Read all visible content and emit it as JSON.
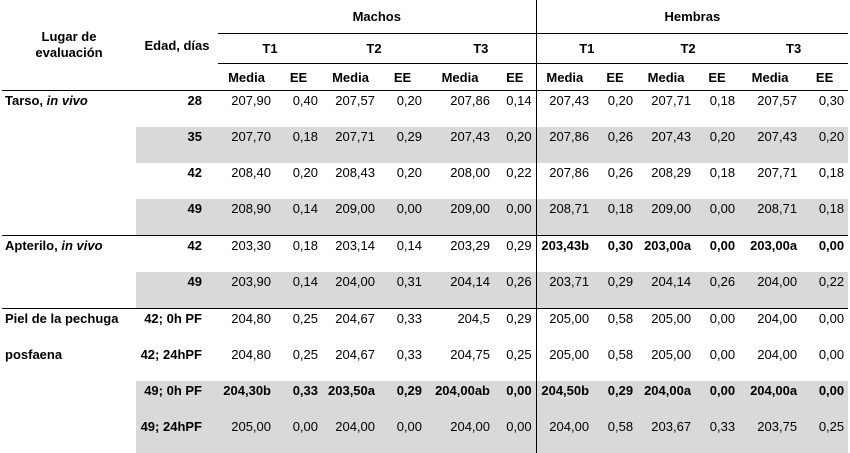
{
  "header": {
    "lugar_line1": "Lugar de",
    "lugar_line2": "evaluación",
    "edad": "Edad, días",
    "group_machos": "Machos",
    "group_hembras": "Hembras",
    "treatments": [
      "T1",
      "T2",
      "T3",
      "T1",
      "T2",
      "T3"
    ],
    "media": "Media",
    "ee": "EE"
  },
  "rows": [
    {
      "lugar": "Tarso, ",
      "lugar_it": "in vivo",
      "edad": "28",
      "shaded": false,
      "group_start": true,
      "values": [
        "207,90",
        "0,40",
        "207,57",
        "0,20",
        "207,86",
        "0,14",
        "207,43",
        "0,20",
        "207,71",
        "0,18",
        "207,57",
        "0,30"
      ],
      "bold": []
    },
    {
      "lugar": "",
      "lugar_it": "",
      "edad": "35",
      "shaded": true,
      "group_start": false,
      "values": [
        "207,70",
        "0,18",
        "207,71",
        "0,29",
        "207,43",
        "0,20",
        "207,86",
        "0,26",
        "207,43",
        "0,20",
        "207,43",
        "0,20"
      ],
      "bold": []
    },
    {
      "lugar": "",
      "lugar_it": "",
      "edad": "42",
      "shaded": false,
      "group_start": false,
      "values": [
        "208,40",
        "0,20",
        "208,43",
        "0,20",
        "208,00",
        "0,22",
        "207,86",
        "0,26",
        "208,29",
        "0,18",
        "207,71",
        "0,18"
      ],
      "bold": []
    },
    {
      "lugar": "",
      "lugar_it": "",
      "edad": "49",
      "shaded": true,
      "group_start": false,
      "values": [
        "208,90",
        "0,14",
        "209,00",
        "0,00",
        "209,00",
        "0,00",
        "208,71",
        "0,18",
        "209,00",
        "0,00",
        "208,71",
        "0,18"
      ],
      "bold": []
    },
    {
      "lugar": "Apterilo, ",
      "lugar_it": "in vivo",
      "edad": "42",
      "shaded": false,
      "group_start": true,
      "values": [
        "203,30",
        "0,18",
        "203,14",
        "0,14",
        "203,29",
        "0,29",
        "203,43b",
        "0,30",
        "203,00a",
        "0,00",
        "203,00a",
        "0,00"
      ],
      "bold": [
        6,
        7,
        8,
        9,
        10,
        11
      ]
    },
    {
      "lugar": "",
      "lugar_it": "",
      "edad": "49",
      "shaded": true,
      "group_start": false,
      "values": [
        "203,90",
        "0,14",
        "204,00",
        "0,31",
        "204,14",
        "0,26",
        "203,71",
        "0,29",
        "204,14",
        "0,26",
        "204,00",
        "0,22"
      ],
      "bold": []
    },
    {
      "lugar": "Piel de la pechuga",
      "lugar_it": "",
      "edad": "42; 0h PF",
      "shaded": false,
      "group_start": true,
      "values": [
        "204,80",
        "0,25",
        "204,67",
        "0,33",
        "204,5",
        "0,29",
        "205,00",
        "0,58",
        "205,00",
        "0,00",
        "204,00",
        "0,00"
      ],
      "bold": []
    },
    {
      "lugar": "posfaena",
      "lugar_it": "",
      "edad": "42; 24hPF",
      "shaded": false,
      "group_start": false,
      "values": [
        "204,80",
        "0,25",
        "204,67",
        "0,33",
        "204,75",
        "0,25",
        "205,00",
        "0,58",
        "205,00",
        "0,00",
        "204,00",
        "0,00"
      ],
      "bold": []
    },
    {
      "lugar": "",
      "lugar_it": "",
      "edad": "49; 0h PF",
      "shaded": true,
      "group_start": false,
      "values": [
        "204,30b",
        "0,33",
        "203,50a",
        "0,29",
        "204,00ab",
        "0,00",
        "204,50b",
        "0,29",
        "204,00a",
        "0,00",
        "204,00a",
        "0,00"
      ],
      "bold": [
        0,
        1,
        2,
        3,
        4,
        5,
        6,
        7,
        8,
        9,
        10,
        11
      ]
    },
    {
      "lugar": "",
      "lugar_it": "",
      "edad": "49; 24hPF",
      "shaded": true,
      "group_start": false,
      "values": [
        "205,00",
        "0,00",
        "204,00",
        "0,00",
        "204,00",
        "0,00",
        "204,00",
        "0,58",
        "203,67",
        "0,33",
        "203,75",
        "0,25"
      ],
      "bold": []
    }
  ]
}
